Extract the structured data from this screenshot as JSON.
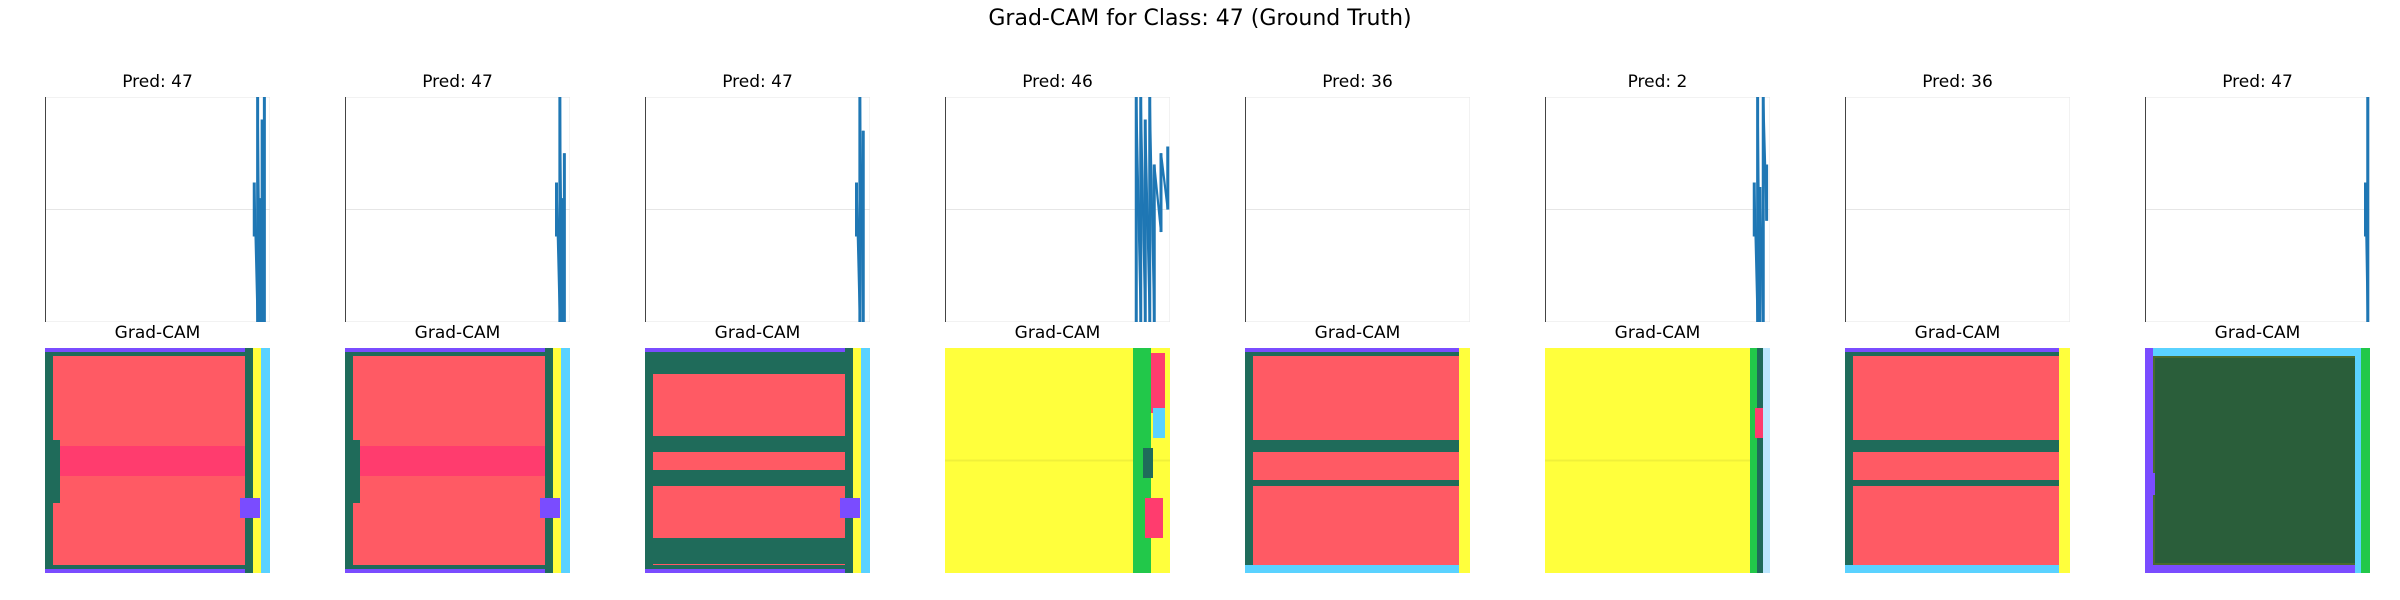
{
  "suptitle": "Grad-CAM for Class: 47 (Ground Truth)",
  "chart_data": {
    "type": "line",
    "title": "Grad-CAM for Class: 47 (Ground Truth)",
    "axes_visible": false,
    "grid": true,
    "line_color": "#1f77b4",
    "samples": [
      {
        "pred_label": "Pred: 47",
        "cam_label": "Grad-CAM",
        "signal": {
          "spikes": [
            {
              "x": 0.93,
              "y0": 0.38,
              "y1": 0.62
            },
            {
              "x": 0.945,
              "y0": 0.0,
              "y1": 1.0
            },
            {
              "x": 0.955,
              "y0": 0.0,
              "y1": 0.55
            },
            {
              "x": 0.965,
              "y0": 0.0,
              "y1": 0.9
            },
            {
              "x": 0.975,
              "y0": 0.0,
              "y1": 1.0
            }
          ]
        },
        "cam": {
          "base": "#ff5a64",
          "bands": [
            "#ff3c6e",
            "#1f6b5a",
            "#7a4cff",
            "#ffff3c",
            "#5ad2ff"
          ],
          "style": "red"
        }
      },
      {
        "pred_label": "Pred: 47",
        "cam_label": "Grad-CAM",
        "signal": {
          "spikes": [
            {
              "x": 0.94,
              "y0": 0.38,
              "y1": 0.62
            },
            {
              "x": 0.955,
              "y0": 0.0,
              "y1": 1.0
            },
            {
              "x": 0.965,
              "y0": 0.0,
              "y1": 0.55
            },
            {
              "x": 0.975,
              "y0": 0.0,
              "y1": 0.75
            }
          ]
        },
        "cam": {
          "base": "#ff5a64",
          "bands": [
            "#ff3c6e",
            "#1f6b5a",
            "#7a4cff",
            "#ffff3c",
            "#5ad2ff"
          ],
          "style": "red"
        }
      },
      {
        "pred_label": "Pred: 47",
        "cam_label": "Grad-CAM",
        "signal": {
          "spikes": [
            {
              "x": 0.94,
              "y0": 0.38,
              "y1": 0.62
            },
            {
              "x": 0.955,
              "y0": 0.0,
              "y1": 1.0
            },
            {
              "x": 0.97,
              "y0": 0.0,
              "y1": 0.85
            }
          ]
        },
        "cam": {
          "base": "#ff5a64",
          "bands": [
            "#ff3c6e",
            "#1f6b5a",
            "#7a4cff",
            "#ffff3c",
            "#5ad2ff"
          ],
          "style": "redgreen"
        }
      },
      {
        "pred_label": "Pred: 46",
        "cam_label": "Grad-CAM",
        "signal": {
          "spikes": [
            {
              "x": 0.85,
              "y0": 0.0,
              "y1": 1.0
            },
            {
              "x": 0.87,
              "y0": 0.0,
              "y1": 1.0
            },
            {
              "x": 0.89,
              "y0": 0.0,
              "y1": 0.9
            },
            {
              "x": 0.91,
              "y0": 0.0,
              "y1": 1.0
            },
            {
              "x": 0.93,
              "y0": 0.0,
              "y1": 0.7
            },
            {
              "x": 0.96,
              "y0": 0.4,
              "y1": 0.75
            },
            {
              "x": 0.99,
              "y0": 0.5,
              "y1": 0.78
            }
          ]
        },
        "cam": {
          "base": "#ffff3c",
          "bands": [
            "#22c84a",
            "#ff3c6e",
            "#5ad2ff"
          ],
          "style": "yellow-right"
        }
      },
      {
        "pred_label": "Pred: 36",
        "cam_label": "Grad-CAM",
        "signal": {
          "spikes": []
        },
        "cam": {
          "base": "#ff5a64",
          "bands": [
            "#ff3c6e",
            "#1f6b5a",
            "#7a4cff",
            "#ffff3c",
            "#5ad2ff"
          ],
          "style": "red-lines"
        }
      },
      {
        "pred_label": "Pred: 2",
        "cam_label": "Grad-CAM",
        "signal": {
          "spikes": [
            {
              "x": 0.93,
              "y0": 0.38,
              "y1": 0.62
            },
            {
              "x": 0.945,
              "y0": 0.0,
              "y1": 1.0
            },
            {
              "x": 0.955,
              "y0": 0.0,
              "y1": 0.6
            },
            {
              "x": 0.97,
              "y0": 0.0,
              "y1": 1.0
            },
            {
              "x": 0.985,
              "y0": 0.45,
              "y1": 0.7
            }
          ]
        },
        "cam": {
          "base": "#ffff3c",
          "bands": [
            "#22c84a",
            "#ff3c6e"
          ],
          "style": "yellow"
        }
      },
      {
        "pred_label": "Pred: 36",
        "cam_label": "Grad-CAM",
        "signal": {
          "spikes": []
        },
        "cam": {
          "base": "#ff5a64",
          "bands": [
            "#ff3c6e",
            "#1f6b5a",
            "#7a4cff",
            "#ffff3c",
            "#5ad2ff"
          ],
          "style": "red-lines"
        }
      },
      {
        "pred_label": "Pred: 47",
        "cam_label": "Grad-CAM",
        "signal": {
          "spikes": [
            {
              "x": 0.98,
              "y0": 0.38,
              "y1": 0.62
            },
            {
              "x": 0.99,
              "y0": 0.0,
              "y1": 1.0
            }
          ]
        },
        "cam": {
          "base": "#4a6b2e",
          "bands": [
            "#2a5e3a",
            "#7a4cff",
            "#5ad2ff",
            "#22c84a"
          ],
          "style": "olive"
        }
      }
    ]
  }
}
